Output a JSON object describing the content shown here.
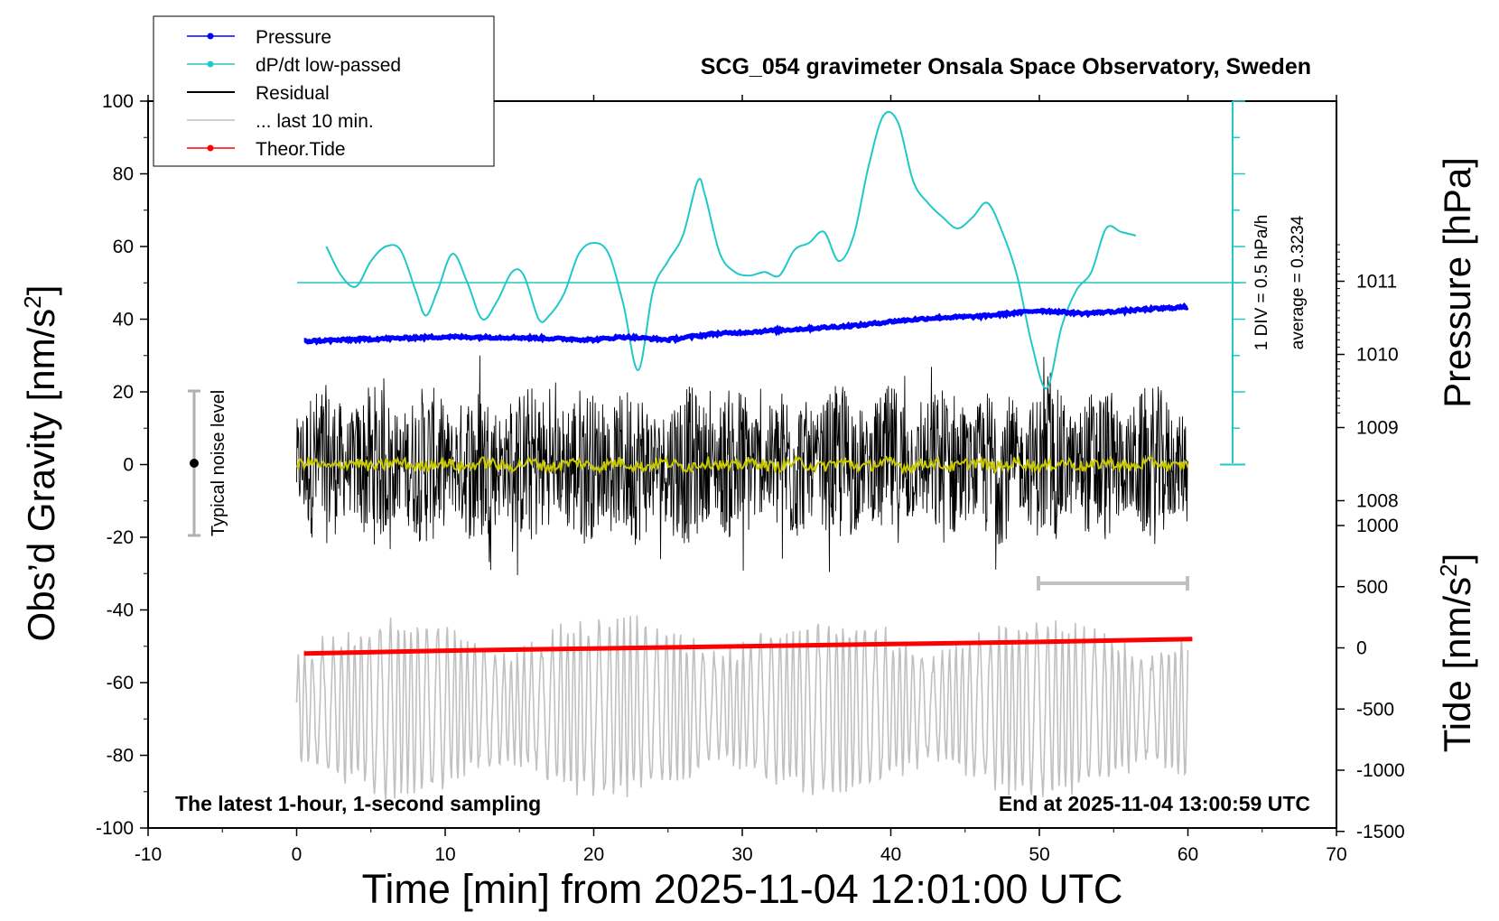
{
  "chart_data": {
    "type": "line",
    "title": "SCG_054 gravimeter Onsala Space Observatory, Sweden",
    "xlabel": "Time [min] from 2025-11-04 12:01:00 UTC",
    "ylabel_left_main": "Obs’d Gravity [nm/s",
    "ylabel_left_sup": "2",
    "ylabel_left_end": "]",
    "ylabel_right_pressure": "Pressure [hPa]",
    "ylabel_right_tide_main": "Tide [nm/s",
    "ylabel_right_tide_sup": "2",
    "ylabel_right_tide_end": "]",
    "xlim": [
      -10,
      70
    ],
    "ylim": [
      -100,
      100
    ],
    "x_ticks": [
      "-10",
      "0",
      "10",
      "20",
      "30",
      "40",
      "50",
      "60",
      "70"
    ],
    "y_ticks": [
      "-100",
      "-80",
      "-60",
      "-40",
      "-20",
      "0",
      "20",
      "40",
      "60",
      "80",
      "100"
    ],
    "pressure_ticks": [
      "1008",
      "1009",
      "1010",
      "1011"
    ],
    "tide_ticks": [
      "-1500",
      "-1000",
      "-500",
      "0",
      "500",
      "1000"
    ],
    "annotation_bottom_left": "The latest 1-hour, 1-second sampling",
    "annotation_bottom_right": "End at 2025-11-04 13:00:59 UTC",
    "dpdt_scale_label": "1 DIV = 0.5 hPa/h",
    "dpdt_average_label": "average = 0.3234",
    "noise_label": "Typical noise level",
    "legend_placement": "top-left",
    "legend": [
      {
        "label": "Pressure",
        "color": "#0000ff",
        "marker": true
      },
      {
        "label": "dP/dt low-passed",
        "color": "#20c8c8",
        "marker": true
      },
      {
        "label": "Residual",
        "color": "#000000",
        "marker": false
      },
      {
        "label": "... last 10 min.",
        "color": "#c0c0c0",
        "marker": false
      },
      {
        "label": "Theor.Tide",
        "color": "#ff0000",
        "marker": true
      }
    ],
    "series": [
      {
        "name": "Pressure",
        "color": "#0000ff",
        "unit": "hPa",
        "x": [
          0.5,
          5,
          10,
          15,
          20,
          22,
          25,
          28,
          30,
          35,
          38,
          40,
          43,
          46,
          50,
          53,
          56,
          60
        ],
        "y": [
          1010.18,
          1010.21,
          1010.24,
          1010.23,
          1010.2,
          1010.24,
          1010.2,
          1010.28,
          1010.3,
          1010.36,
          1010.4,
          1010.45,
          1010.5,
          1010.52,
          1010.6,
          1010.56,
          1010.6,
          1010.65
        ]
      },
      {
        "name": "dP/dt low-passed",
        "color": "#20c8c8",
        "unit": "nm/s2",
        "x": [
          2,
          3,
          4,
          5,
          6,
          7,
          8,
          8.7,
          9.5,
          10.5,
          11.5,
          12.5,
          13.5,
          14.5,
          15.3,
          16.3,
          17,
          18,
          19,
          20,
          21,
          22,
          23,
          24,
          25,
          26,
          27,
          27.5,
          28.5,
          29.5,
          30.5,
          31.5,
          32.5,
          33.5,
          34.5,
          35.5,
          36.5,
          37.5,
          38.5,
          39.5,
          40.5,
          41.5,
          42.5,
          43.5,
          44.5,
          45.5,
          46.5,
          47.5,
          48.5,
          49.5,
          50.5,
          51.5,
          52.5,
          53.5,
          54.5,
          55.5,
          56.5
        ],
        "y": [
          60,
          52,
          49,
          56,
          60,
          59,
          48,
          41,
          48,
          58,
          50,
          40,
          45,
          53,
          52,
          40,
          41,
          47,
          58,
          61,
          58,
          44,
          26,
          48,
          56,
          63,
          78,
          74,
          58,
          53,
          52,
          53,
          52,
          59,
          61,
          64,
          56,
          63,
          82,
          96,
          94,
          78,
          72,
          68,
          65,
          68,
          72,
          64,
          52,
          33,
          21,
          38,
          48,
          53,
          65,
          64,
          63
        ]
      },
      {
        "name": "Residual",
        "color": "#000000",
        "unit": "nm/s2",
        "x": [
          0,
          60
        ],
        "y": [
          0,
          0
        ],
        "y_range": [
          -37,
          37
        ]
      },
      {
        "name": "... last 10 min.",
        "color": "#c0c0c0",
        "unit": "nm/s2",
        "x": [
          50,
          60
        ],
        "y": [
          -67,
          -67
        ],
        "y_range": [
          -93,
          -35
        ]
      },
      {
        "name": "Theor.Tide",
        "color": "#ff0000",
        "unit": "nm/s2",
        "x": [
          0.5,
          10,
          20,
          30,
          40,
          50,
          60.3
        ],
        "y": [
          -52,
          -51.2,
          -50.6,
          -50,
          -49.4,
          -48.8,
          -48
        ]
      }
    ]
  }
}
